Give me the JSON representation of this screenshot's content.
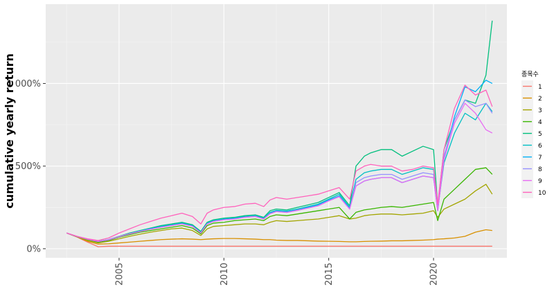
{
  "chart_data": {
    "type": "line",
    "title": "",
    "xlabel": "",
    "ylabel": "cumulative yearly return",
    "xlim": [
      2001.5,
      2023.5
    ],
    "ylim": [
      -55,
      1480
    ],
    "x_ticks": [
      2005,
      2010,
      2015,
      2020
    ],
    "x_tick_labels": [
      "2005",
      "2010",
      "2015",
      "2020"
    ],
    "y_ticks": [
      0,
      500,
      1000
    ],
    "y_tick_labels": [
      "0%",
      "500%",
      "1 000%"
    ],
    "grid": true,
    "legend": {
      "title": "종목수",
      "position": "right"
    },
    "x": [
      2002.5,
      2003.0,
      2003.5,
      2004.0,
      2004.5,
      2005.0,
      2005.5,
      2006.0,
      2006.5,
      2007.0,
      2007.5,
      2008.0,
      2008.5,
      2008.9,
      2009.2,
      2009.5,
      2010.0,
      2010.5,
      2011.0,
      2011.5,
      2011.9,
      2012.2,
      2012.5,
      2013.0,
      2013.5,
      2014.0,
      2014.5,
      2015.0,
      2015.5,
      2016.0,
      2016.3,
      2016.7,
      2017.0,
      2017.5,
      2018.0,
      2018.5,
      2019.0,
      2019.5,
      2020.0,
      2020.2,
      2020.5,
      2021.0,
      2021.5,
      2022.0,
      2022.5,
      2022.8
    ],
    "series": [
      {
        "name": "1",
        "color": "#F8766D",
        "values": [
          95,
          70,
          40,
          12,
          15,
          15,
          15,
          15,
          15,
          15,
          15,
          15,
          15,
          15,
          15,
          15,
          15,
          15,
          15,
          15,
          15,
          15,
          15,
          15,
          15,
          15,
          15,
          15,
          15,
          15,
          15,
          15,
          15,
          15,
          15,
          15,
          15,
          15,
          15,
          15,
          15,
          15,
          15,
          15,
          15,
          15
        ]
      },
      {
        "name": "2",
        "color": "#D89000",
        "values": [
          95,
          72,
          45,
          28,
          30,
          35,
          40,
          45,
          50,
          55,
          58,
          60,
          58,
          55,
          58,
          60,
          62,
          62,
          60,
          58,
          55,
          55,
          52,
          50,
          50,
          48,
          46,
          45,
          44,
          42,
          42,
          44,
          45,
          46,
          48,
          48,
          50,
          52,
          55,
          58,
          60,
          65,
          75,
          100,
          115,
          110
        ]
      },
      {
        "name": "3",
        "color": "#A3A500",
        "values": [
          95,
          72,
          50,
          35,
          45,
          60,
          75,
          88,
          100,
          110,
          120,
          125,
          110,
          80,
          120,
          135,
          140,
          145,
          150,
          150,
          145,
          160,
          170,
          165,
          170,
          175,
          180,
          190,
          200,
          180,
          185,
          200,
          205,
          210,
          210,
          205,
          210,
          215,
          230,
          190,
          240,
          270,
          300,
          350,
          390,
          330
        ]
      },
      {
        "name": "4",
        "color": "#39B600",
        "values": [
          95,
          73,
          55,
          40,
          50,
          70,
          85,
          100,
          110,
          120,
          130,
          140,
          125,
          90,
          140,
          155,
          160,
          170,
          175,
          180,
          170,
          195,
          205,
          200,
          210,
          220,
          230,
          240,
          250,
          180,
          220,
          235,
          240,
          250,
          255,
          250,
          260,
          270,
          280,
          170,
          300,
          360,
          420,
          480,
          490,
          450
        ]
      },
      {
        "name": "5",
        "color": "#00BF7D",
        "values": [
          95,
          74,
          58,
          45,
          55,
          75,
          95,
          110,
          125,
          140,
          150,
          160,
          145,
          105,
          160,
          175,
          185,
          190,
          200,
          205,
          190,
          230,
          240,
          235,
          250,
          265,
          280,
          310,
          340,
          260,
          500,
          560,
          580,
          600,
          600,
          560,
          590,
          620,
          600,
          260,
          600,
          780,
          900,
          880,
          1050,
          1380
        ]
      },
      {
        "name": "6",
        "color": "#00BFC4",
        "values": [
          95,
          74,
          58,
          45,
          55,
          74,
          92,
          108,
          122,
          135,
          145,
          155,
          140,
          100,
          155,
          170,
          180,
          185,
          195,
          200,
          185,
          220,
          232,
          228,
          240,
          255,
          270,
          300,
          330,
          250,
          420,
          460,
          470,
          480,
          480,
          450,
          470,
          490,
          480,
          240,
          520,
          700,
          820,
          780,
          880,
          830
        ]
      },
      {
        "name": "7",
        "color": "#00B0F6",
        "values": [
          95,
          74,
          57,
          44,
          54,
          73,
          90,
          106,
          120,
          132,
          142,
          152,
          138,
          98,
          152,
          168,
          178,
          183,
          192,
          197,
          182,
          215,
          228,
          224,
          235,
          250,
          265,
          295,
          320,
          245,
          380,
          410,
          420,
          430,
          430,
          400,
          420,
          440,
          430,
          230,
          550,
          800,
          980,
          950,
          1020,
          1000
        ]
      },
      {
        "name": "8",
        "color": "#9590FF",
        "values": [
          95,
          74,
          57,
          44,
          54,
          73,
          90,
          105,
          118,
          130,
          140,
          150,
          136,
          96,
          150,
          165,
          175,
          180,
          190,
          195,
          180,
          212,
          225,
          220,
          232,
          246,
          260,
          290,
          315,
          240,
          400,
          430,
          440,
          450,
          450,
          420,
          440,
          460,
          450,
          240,
          560,
          780,
          900,
          860,
          880,
          820
        ]
      },
      {
        "name": "9",
        "color": "#E76BF3",
        "values": [
          95,
          74,
          57,
          44,
          54,
          73,
          90,
          105,
          118,
          130,
          140,
          150,
          136,
          96,
          150,
          165,
          175,
          180,
          190,
          195,
          180,
          212,
          225,
          220,
          232,
          246,
          260,
          290,
          315,
          240,
          380,
          410,
          420,
          430,
          430,
          400,
          420,
          440,
          430,
          230,
          540,
          760,
          880,
          820,
          720,
          700
        ]
      },
      {
        "name": "10",
        "color": "#FF62BC",
        "values": [
          95,
          75,
          60,
          50,
          65,
          95,
          120,
          145,
          165,
          185,
          200,
          215,
          195,
          150,
          215,
          235,
          250,
          255,
          270,
          275,
          255,
          295,
          310,
          300,
          310,
          320,
          330,
          350,
          370,
          300,
          470,
          500,
          510,
          500,
          500,
          470,
          480,
          500,
          490,
          270,
          600,
          850,
          990,
          930,
          960,
          860
        ]
      }
    ]
  }
}
